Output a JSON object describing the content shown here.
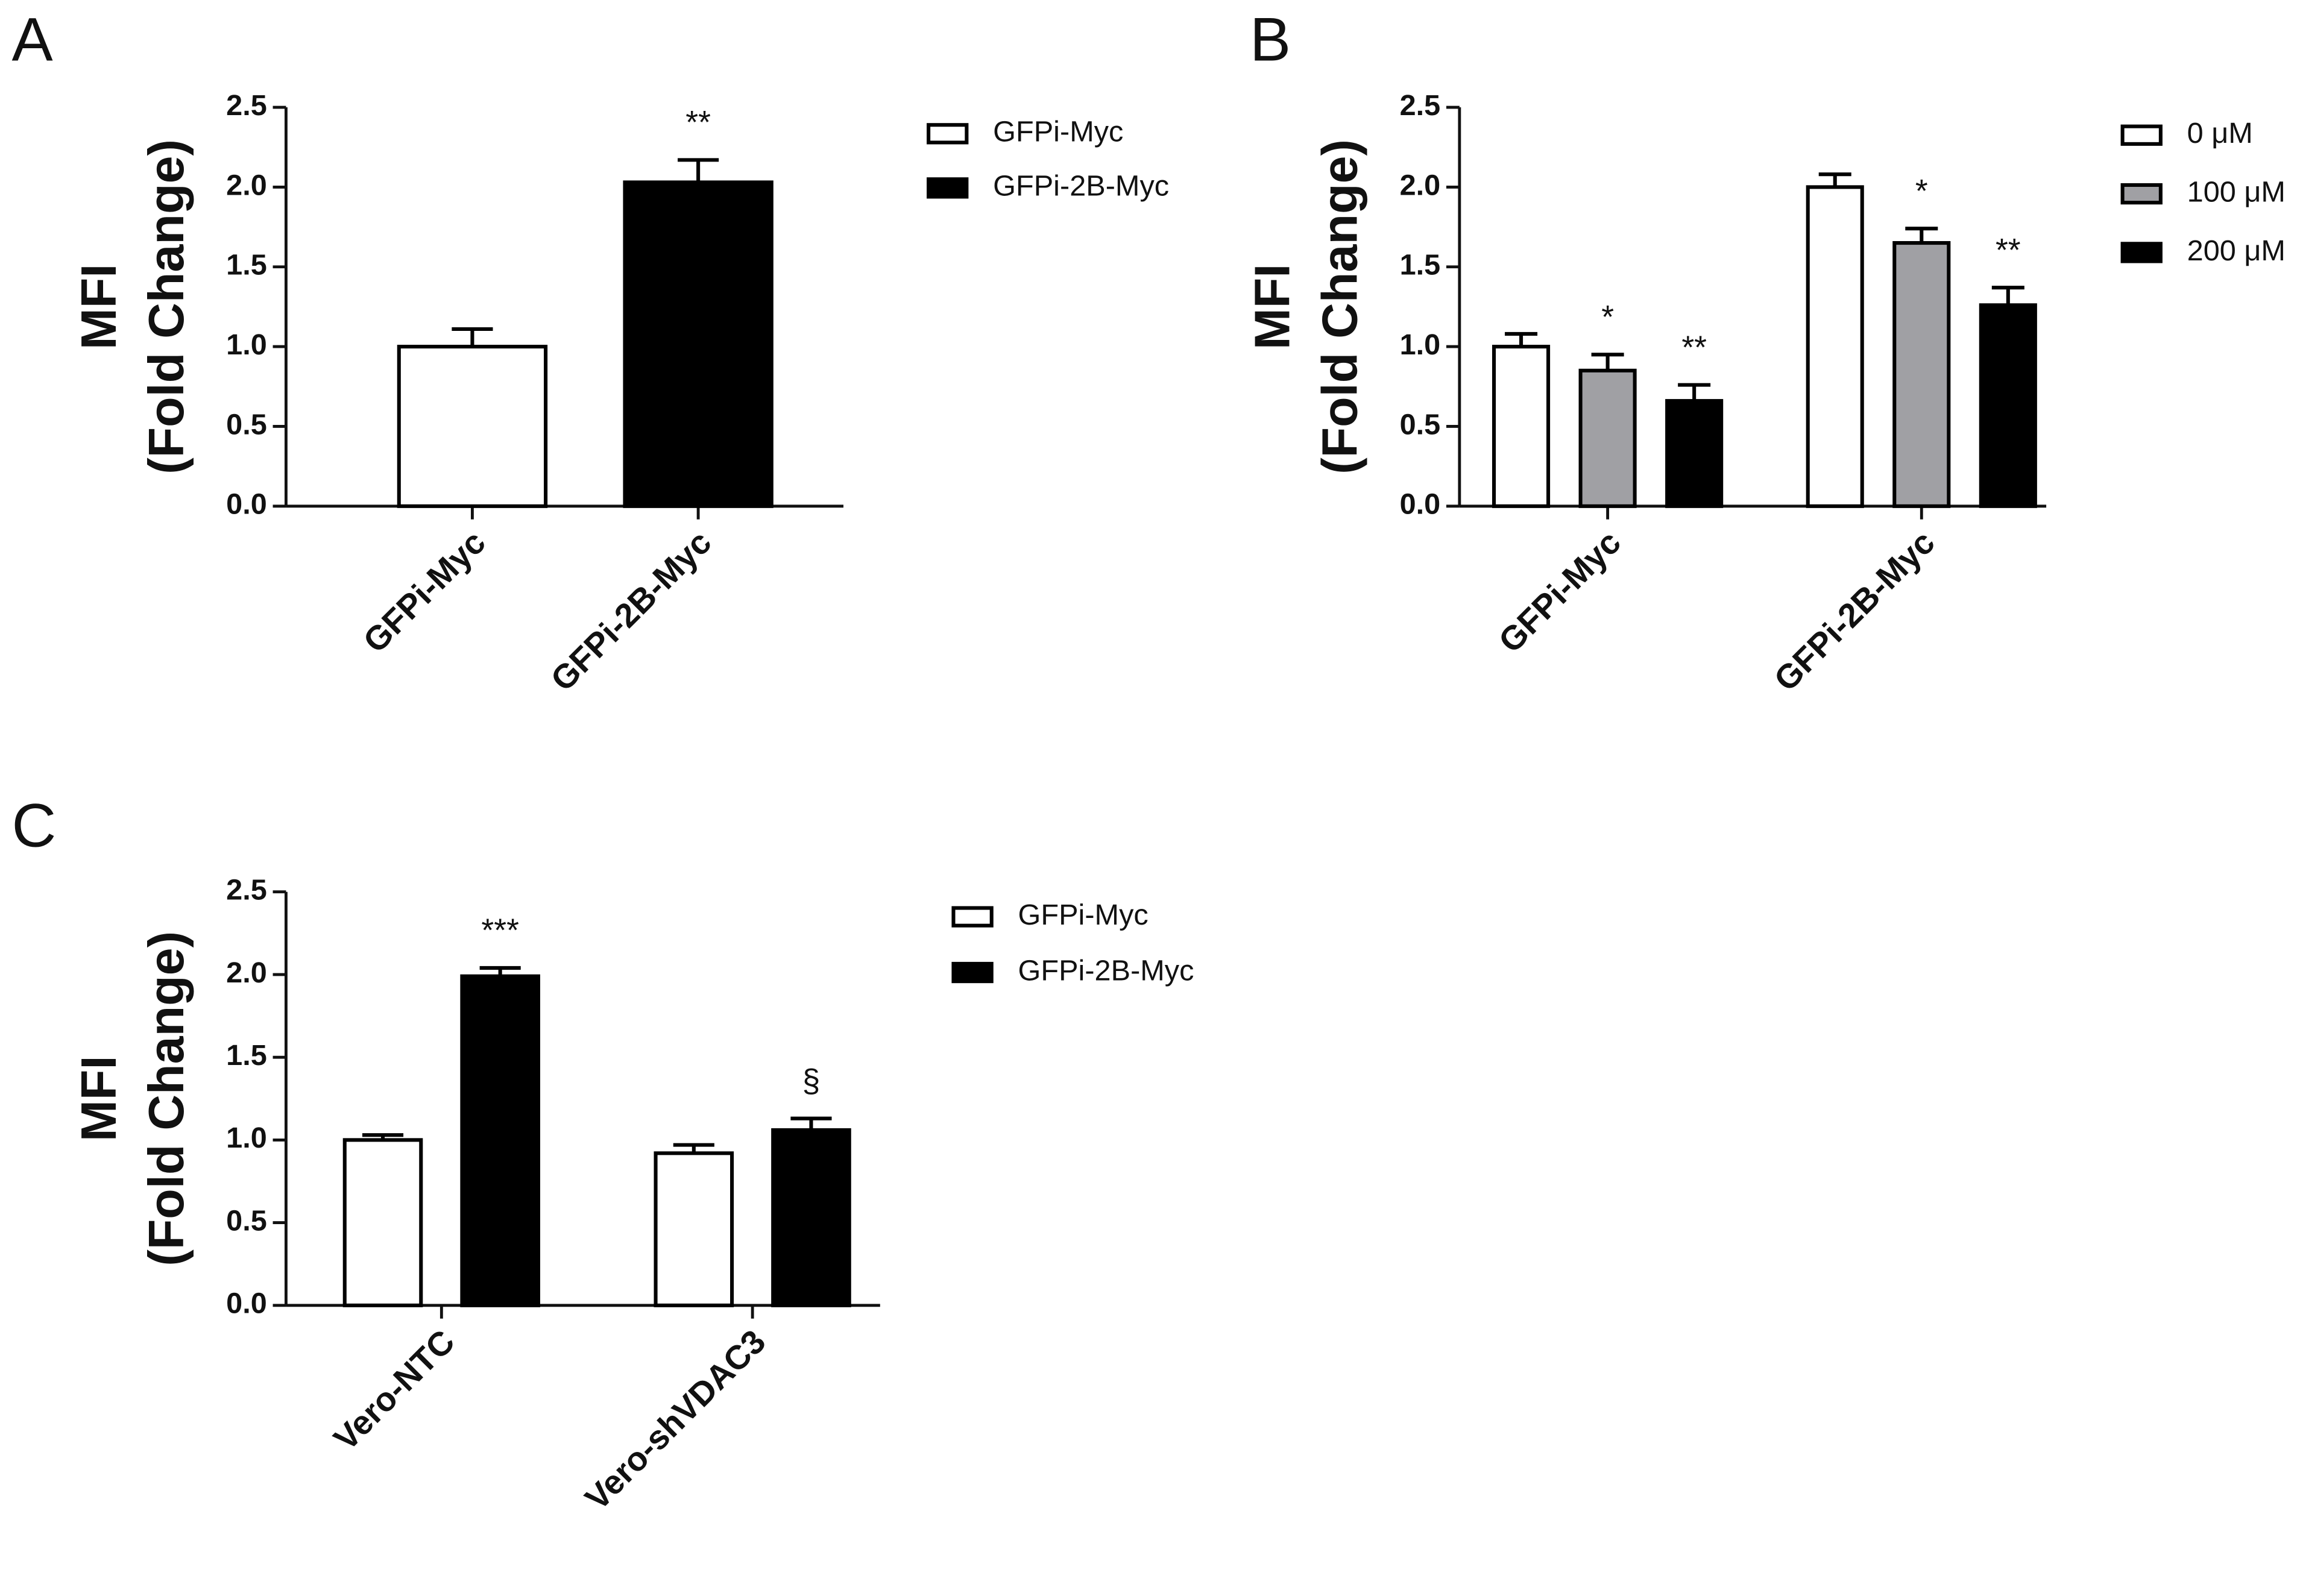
{
  "chart_data": [
    {
      "type": "bar",
      "panel": "A",
      "ylabel": [
        "MFI",
        "(Fold Change)"
      ],
      "categories": [
        "GFPi-Myc",
        "GFPi-2B-Myc"
      ],
      "series": [
        {
          "name": "GFPi-Myc",
          "color": "#ffffff",
          "values": [
            1.0,
            null
          ],
          "errors": [
            0.11,
            null
          ],
          "significance": [
            null,
            null
          ]
        },
        {
          "name": "GFPi-2B-Myc",
          "color": "#000000",
          "values": [
            null,
            2.03
          ],
          "errors": [
            null,
            0.14
          ],
          "significance": [
            null,
            "**"
          ]
        }
      ],
      "ylim": [
        0,
        2.5
      ],
      "yticks": [
        {
          "value": 0,
          "label": "0.0"
        },
        0.5,
        {
          "value": 1,
          "label": "1.0"
        },
        1.5,
        {
          "value": 2,
          "label": "2.0"
        },
        2.5
      ]
    },
    {
      "type": "bar",
      "panel": "B",
      "ylabel": [
        "MFI",
        "(Fold Change)"
      ],
      "categories": [
        "GFPi-Myc",
        "GFPi-2B-Myc"
      ],
      "series": [
        {
          "name": "0 μM",
          "color": "#ffffff",
          "values": [
            1.0,
            2.0
          ],
          "errors": [
            0.08,
            0.08
          ],
          "significance": [
            null,
            null
          ]
        },
        {
          "name": "100 μM",
          "color": "#a0a0a4",
          "values": [
            0.85,
            1.65
          ],
          "errors": [
            0.1,
            0.09
          ],
          "significance": [
            "*",
            "*"
          ]
        },
        {
          "name": "200 μM",
          "color": "#000000",
          "values": [
            0.66,
            1.26
          ],
          "errors": [
            0.1,
            0.11
          ],
          "significance": [
            "**",
            "**"
          ]
        }
      ],
      "ylim": [
        0,
        2.5
      ],
      "yticks": [
        {
          "value": 0,
          "label": "0.0"
        },
        0.5,
        {
          "value": 1,
          "label": "1.0"
        },
        1.5,
        {
          "value": 2,
          "label": "2.0"
        },
        2.5
      ]
    },
    {
      "type": "bar",
      "panel": "C",
      "ylabel": [
        "MFI",
        "(Fold Change)"
      ],
      "categories": [
        "Vero-NTC",
        "Vero-shVDAC3"
      ],
      "series": [
        {
          "name": "GFPi-Myc",
          "color": "#ffffff",
          "values": [
            1.0,
            0.92
          ],
          "errors": [
            0.03,
            0.05
          ],
          "significance": [
            null,
            null
          ]
        },
        {
          "name": "GFPi-2B-Myc",
          "color": "#000000",
          "values": [
            1.99,
            1.06
          ],
          "errors": [
            0.05,
            0.07
          ],
          "significance": [
            "***",
            "§"
          ]
        }
      ],
      "ylim": [
        0,
        2.5
      ],
      "yticks": [
        {
          "value": 0,
          "label": "0.0"
        },
        0.5,
        {
          "value": 1,
          "label": "1.0"
        },
        1.5,
        {
          "value": 2,
          "label": "2.0"
        },
        2.5
      ]
    }
  ]
}
